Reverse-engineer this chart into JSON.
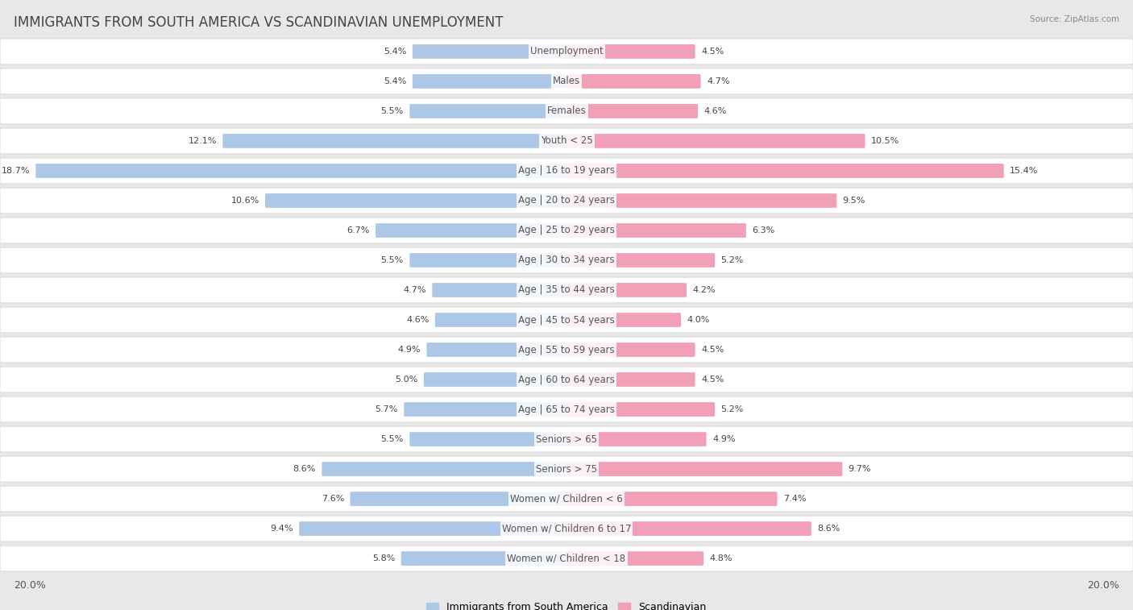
{
  "title": "IMMIGRANTS FROM SOUTH AMERICA VS SCANDINAVIAN UNEMPLOYMENT",
  "source": "Source: ZipAtlas.com",
  "categories": [
    "Unemployment",
    "Males",
    "Females",
    "Youth < 25",
    "Age | 16 to 19 years",
    "Age | 20 to 24 years",
    "Age | 25 to 29 years",
    "Age | 30 to 34 years",
    "Age | 35 to 44 years",
    "Age | 45 to 54 years",
    "Age | 55 to 59 years",
    "Age | 60 to 64 years",
    "Age | 65 to 74 years",
    "Seniors > 65",
    "Seniors > 75",
    "Women w/ Children < 6",
    "Women w/ Children 6 to 17",
    "Women w/ Children < 18"
  ],
  "left_values": [
    5.4,
    5.4,
    5.5,
    12.1,
    18.7,
    10.6,
    6.7,
    5.5,
    4.7,
    4.6,
    4.9,
    5.0,
    5.7,
    5.5,
    8.6,
    7.6,
    9.4,
    5.8
  ],
  "right_values": [
    4.5,
    4.7,
    4.6,
    10.5,
    15.4,
    9.5,
    6.3,
    5.2,
    4.2,
    4.0,
    4.5,
    4.5,
    5.2,
    4.9,
    9.7,
    7.4,
    8.6,
    4.8
  ],
  "left_color": "#adc8e6",
  "right_color": "#f2a0b8",
  "left_label": "Immigrants from South America",
  "right_label": "Scandinavian",
  "x_max": 20.0,
  "background_color": "#e8e8e8",
  "row_bg_color": "#ffffff",
  "title_fontsize": 12,
  "label_fontsize": 8.5,
  "value_fontsize": 8,
  "legend_fontsize": 9
}
